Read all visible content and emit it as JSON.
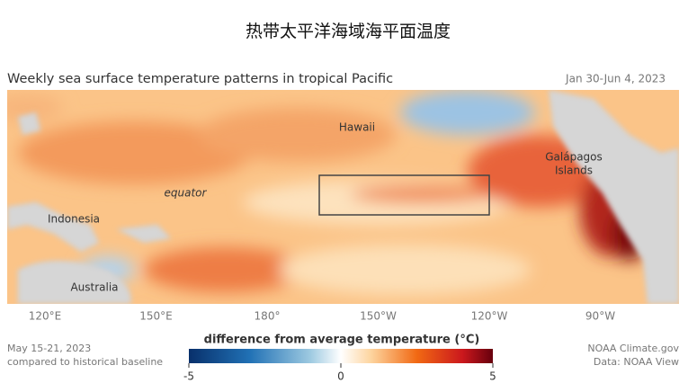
{
  "header": {
    "title": "热带太平洋海域海平面温度"
  },
  "map": {
    "title": "Weekly sea surface temperature patterns in tropical Pacific",
    "date_range": "Jan 30-Jun 4, 2023",
    "places": {
      "hawaii": "Hawaii",
      "galapagos": [
        "Galápagos",
        "Islands"
      ],
      "equator": "equator",
      "indonesia": "Indonesia",
      "australia": "Australia"
    },
    "longitudes": [
      "120°E",
      "150°E",
      "180°",
      "150°W",
      "120°W",
      "90°W"
    ]
  },
  "legend": {
    "title": "difference from average temperature (°C)",
    "range": [
      -5,
      5
    ],
    "ticks": [
      -5,
      0,
      5
    ]
  },
  "footer": {
    "left": [
      "May 15-21, 2023",
      "compared to historical baseline"
    ],
    "right": [
      "NOAA Climate.gov",
      "Data: NOAA View"
    ]
  }
}
